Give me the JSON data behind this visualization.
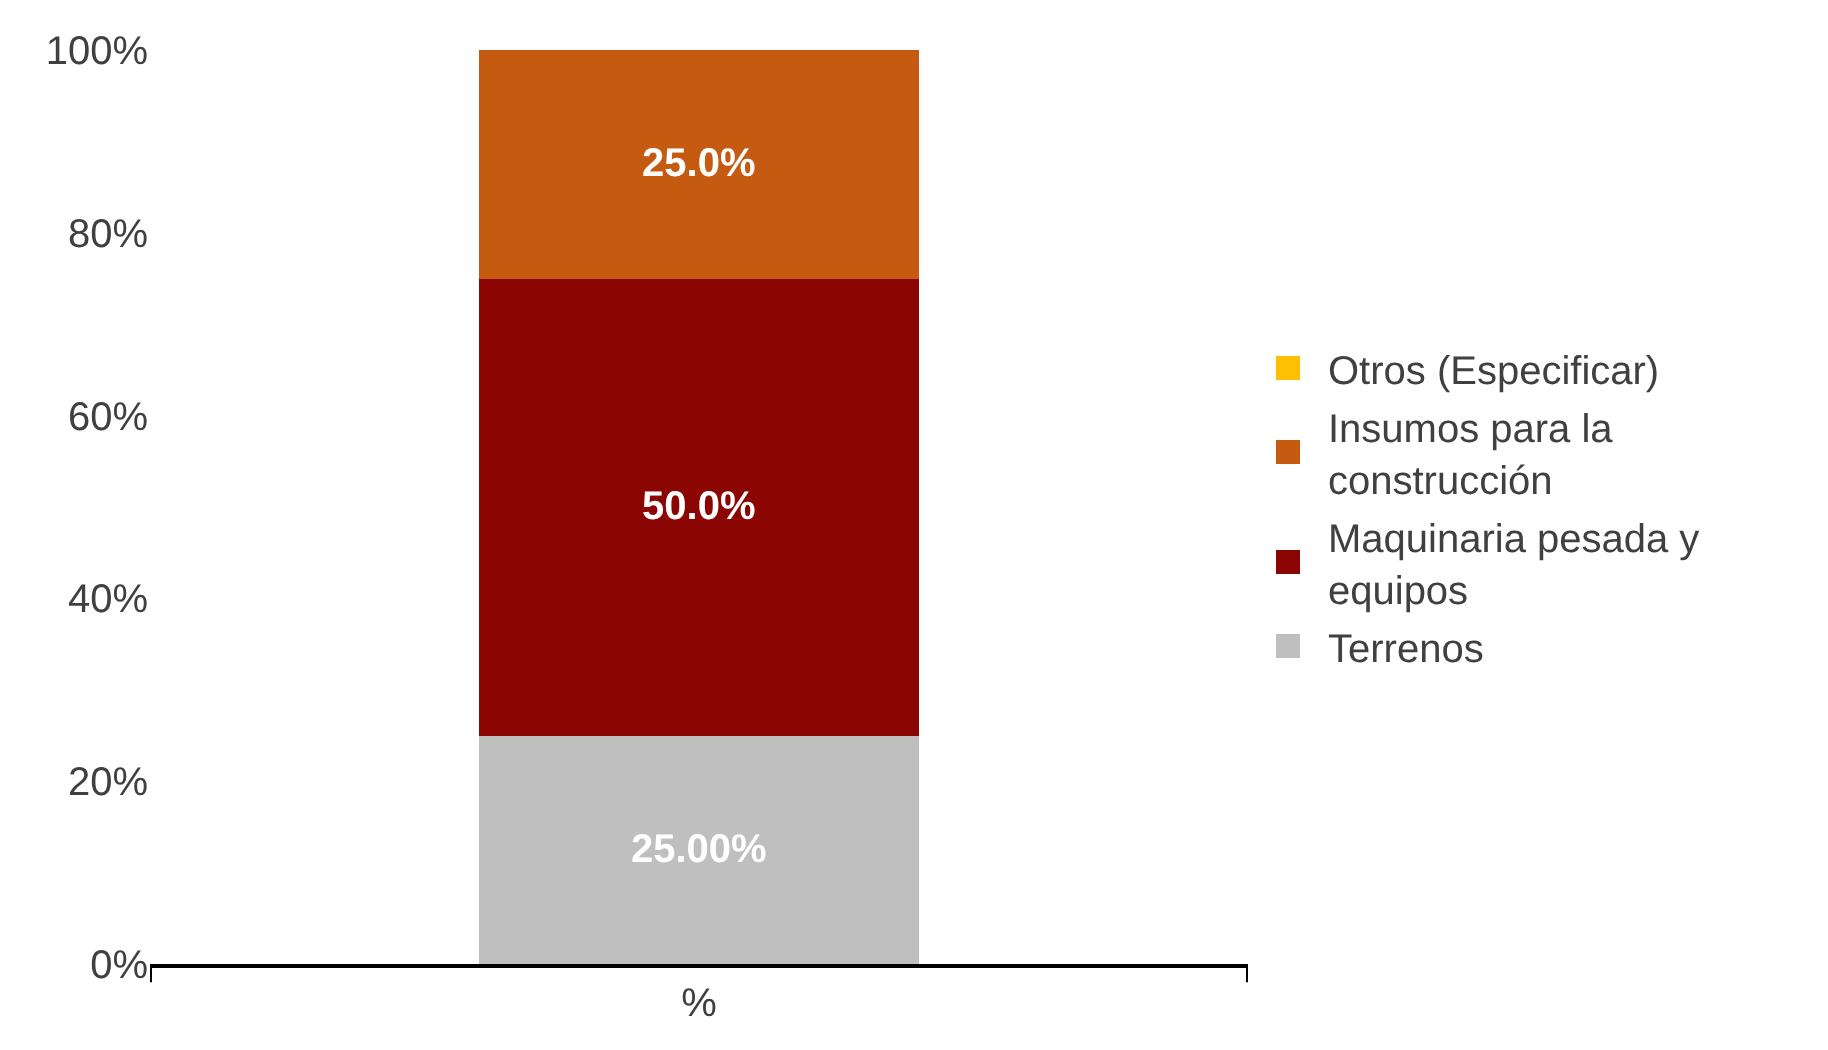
{
  "chart_data": {
    "type": "bar",
    "stacked": true,
    "categories": [
      "%"
    ],
    "series": [
      {
        "name": "Terrenos",
        "color": "#bfbfbf",
        "values": [
          25
        ],
        "value_labels": [
          "25.00%"
        ]
      },
      {
        "name": "Maquinaria pesada y equipos",
        "color": "#8b0503",
        "values": [
          50
        ],
        "value_labels": [
          "50.0%"
        ]
      },
      {
        "name": "Insumos para la construcción",
        "color": "#c55a11",
        "values": [
          25
        ],
        "value_labels": [
          "25.0%"
        ]
      },
      {
        "name": "Otros (Especificar)",
        "color": "#ffc000",
        "values": [
          0
        ],
        "value_labels": [
          null
        ]
      }
    ],
    "ylim": [
      0,
      100
    ],
    "yticks": [
      {
        "value": 0,
        "label": "0%"
      },
      {
        "value": 20,
        "label": "20%"
      },
      {
        "value": 40,
        "label": "40%"
      },
      {
        "value": 60,
        "label": "60%"
      },
      {
        "value": 80,
        "label": "80%"
      },
      {
        "value": 100,
        "label": "100%"
      }
    ],
    "legend": "right"
  }
}
